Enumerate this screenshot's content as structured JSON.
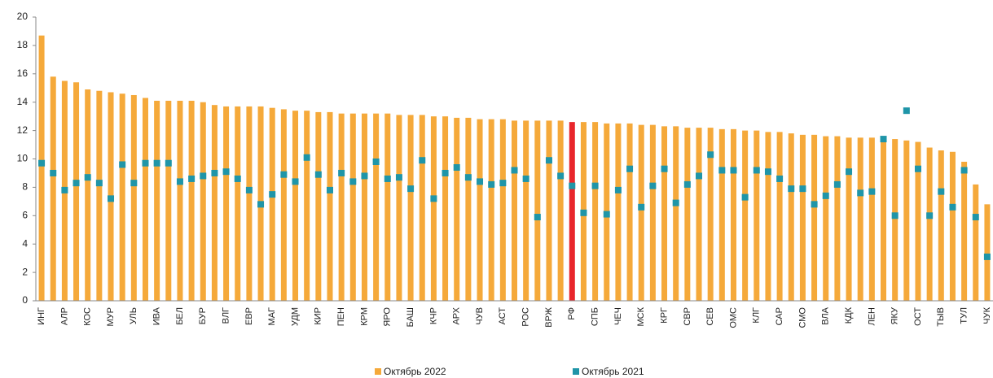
{
  "chart_data": {
    "type": "bar",
    "categories": [
      "ИНГ",
      null,
      "АЛР",
      null,
      "КОС",
      null,
      "МУР",
      null,
      "УЛЬ",
      null,
      "ИВА",
      null,
      "БЕЛ",
      null,
      "БУР",
      null,
      "ВЛГ",
      null,
      "ЕВР",
      null,
      "МАГ",
      null,
      "УДМ",
      null,
      "КИР",
      null,
      "ПЕН",
      null,
      "КРМ",
      null,
      "ЯРО",
      null,
      "БАШ",
      null,
      "КЧР",
      null,
      "АРХ",
      null,
      "ЧУВ",
      null,
      "АСТ",
      null,
      "РОС",
      null,
      "ВРЖ",
      null,
      "РФ",
      null,
      "СПБ",
      null,
      "ЧЕЧ",
      null,
      "МСК",
      null,
      "КРГ",
      null,
      "СВР",
      null,
      "СЕВ",
      null,
      "ОМС",
      null,
      "КЛГ",
      null,
      "САР",
      null,
      "СМО",
      null,
      "ВЛА",
      null,
      "КДК",
      null,
      "ЛЕН",
      null,
      "ЯКУ",
      null,
      "ОСТ",
      null,
      "ТЫВ",
      null,
      "ТУЛ",
      null,
      "ЧУК"
    ],
    "series": [
      {
        "name": "Октябрь 2022",
        "color": "#f5a93a",
        "marker": "bar",
        "values": [
          18.7,
          15.8,
          15.5,
          15.4,
          14.9,
          14.8,
          14.7,
          14.6,
          14.5,
          14.3,
          14.1,
          14.1,
          14.1,
          14.1,
          14.0,
          13.8,
          13.7,
          13.7,
          13.7,
          13.7,
          13.6,
          13.5,
          13.4,
          13.4,
          13.3,
          13.3,
          13.2,
          13.2,
          13.2,
          13.2,
          13.2,
          13.1,
          13.1,
          13.1,
          13.0,
          13.0,
          12.9,
          12.9,
          12.8,
          12.8,
          12.8,
          12.7,
          12.7,
          12.7,
          12.7,
          12.7,
          12.6,
          12.6,
          12.6,
          12.5,
          12.5,
          12.5,
          12.4,
          12.4,
          12.3,
          12.3,
          12.2,
          12.2,
          12.2,
          12.1,
          12.1,
          12.0,
          12.0,
          11.9,
          11.9,
          11.8,
          11.7,
          11.7,
          11.6,
          11.6,
          11.5,
          11.5,
          11.5,
          11.5,
          11.4,
          11.3,
          11.2,
          10.8,
          10.6,
          10.5,
          9.8,
          8.2,
          6.8
        ]
      },
      {
        "name": "Октябрь 2021",
        "color": "#1f95a8",
        "marker": "square",
        "values": [
          9.7,
          9.0,
          7.8,
          8.3,
          8.7,
          8.3,
          7.2,
          9.6,
          8.3,
          9.7,
          9.7,
          9.7,
          8.4,
          8.6,
          8.8,
          9.0,
          9.1,
          8.6,
          7.8,
          6.8,
          7.5,
          8.9,
          8.4,
          10.1,
          8.9,
          7.8,
          9.0,
          8.4,
          8.8,
          9.8,
          8.6,
          8.7,
          7.9,
          9.9,
          7.2,
          9.0,
          9.4,
          8.7,
          8.4,
          8.2,
          8.3,
          9.2,
          8.6,
          5.9,
          9.9,
          8.8,
          8.1,
          6.2,
          8.1,
          6.1,
          7.8,
          9.3,
          6.6,
          8.1,
          9.3,
          6.9,
          8.2,
          8.8,
          10.3,
          9.2,
          9.2,
          7.3,
          9.2,
          9.1,
          8.6,
          7.9,
          7.9,
          6.8,
          7.4,
          8.2,
          9.1,
          7.6,
          7.7,
          11.4,
          6.0,
          13.4,
          9.3,
          6.0,
          7.7,
          6.6,
          9.2,
          5.9,
          3.1
        ]
      }
    ],
    "highlight": {
      "category": "РФ",
      "color": "#e8262c"
    },
    "ylim": [
      0,
      20
    ],
    "yticks": [
      0,
      2,
      4,
      6,
      8,
      10,
      12,
      14,
      16,
      18,
      20
    ],
    "grid": false,
    "legend": "bottom"
  }
}
